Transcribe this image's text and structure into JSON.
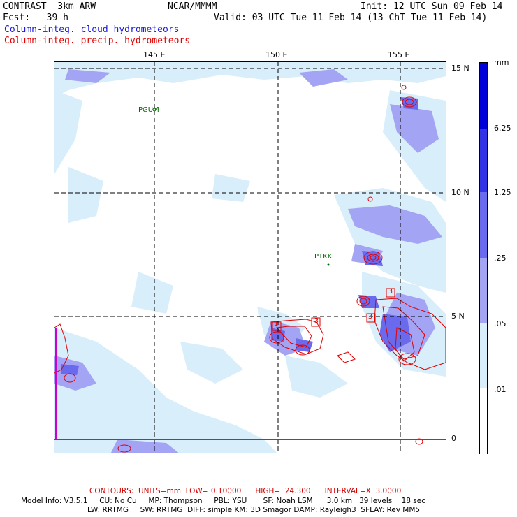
{
  "header": {
    "model": "CONTRAST  3km ARW",
    "org": "NCAR/MMMM",
    "init": "Init: 12 UTC Sun 09 Feb 14",
    "fcst": "Fcst:   39 h",
    "valid": "Valid: 03 UTC Tue 11 Feb 14 (13 ChT Tue 11 Feb 14)",
    "field_cloud": "Column-integ. cloud hydrometeors",
    "field_precip": "Column-integ. precip. hydrometeors"
  },
  "map": {
    "lon_labels": [
      "145 E",
      "150 E",
      "155 E"
    ],
    "lat_labels": [
      "15 N",
      "10 N",
      "5 N",
      "0"
    ],
    "stations": [
      "PGUM",
      "PTKK"
    ],
    "contour_labels": [
      "3",
      "1",
      "3",
      "3"
    ]
  },
  "legend": {
    "unit": "mm",
    "levels": [
      "6.25",
      "1.25",
      ".25",
      ".05",
      ".01"
    ],
    "colors": [
      "#0000d8",
      "#3333e6",
      "#6a6aee",
      "#a4a4f4",
      "#d8eefa",
      "#ffffff"
    ]
  },
  "footer": {
    "contours": "CONTOURS:  UNITS=mm  LOW= 0.10000      HIGH=  24.300      INTERVAL=X  3.0000",
    "model_info_1": "Model Info: V3.5.1     CU: No Cu     MP: Thompson     PBL: YSU       SF: Noah LSM      3.0 km   39 levels    18 sec",
    "model_info_2": "LW: RRTMG     SW: RRTMG  DIFF: simple KM: 3D Smagor DAMP: Rayleigh3  SFLAY: Rev MM5"
  },
  "colors": {
    "cloud_light": "#d8eefa",
    "cloud_mid": "#a4a4f4",
    "cloud_dark": "#6a6aee",
    "precip_contour": "#e00000",
    "equator_line": "#cc00cc"
  }
}
